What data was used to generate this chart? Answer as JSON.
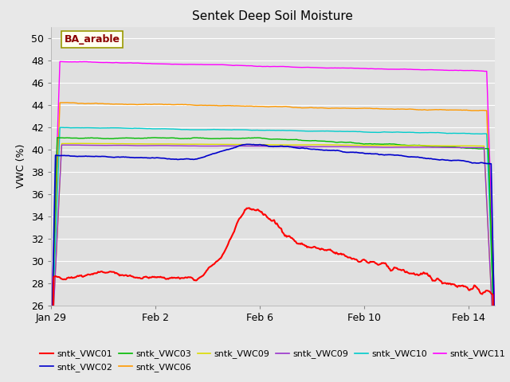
{
  "title": "Sentek Deep Soil Moisture",
  "ylabel": "VWC (%)",
  "fig_bg_color": "#e8e8e8",
  "plot_bg_color": "#e0e0e0",
  "ylim": [
    26,
    51
  ],
  "yticks": [
    26,
    28,
    30,
    32,
    34,
    36,
    38,
    40,
    42,
    44,
    46,
    48,
    50
  ],
  "xtick_labels": [
    "Jan 29",
    "Feb 2",
    "Feb 6",
    "Feb 10",
    "Feb 14"
  ],
  "xtick_days": [
    0,
    4,
    8,
    12,
    16
  ],
  "total_days": 17,
  "annotation": "BA_arable",
  "annotation_color": "#8b0000",
  "annotation_bg": "#fffff0",
  "annotation_edge": "#999900",
  "colors": {
    "vwc01": "#ff0000",
    "vwc02": "#0000cc",
    "vwc03": "#00bb00",
    "vwc06": "#ff9900",
    "vwc09y": "#dddd00",
    "vwc09p": "#9933cc",
    "vwc10": "#00cccc",
    "vwc11": "#ff00ff"
  },
  "legend_order": [
    "sntk_VWC01",
    "sntk_VWC02",
    "sntk_VWC03",
    "sntk_VWC06",
    "sntk_VWC09",
    "sntk_VWC09",
    "sntk_VWC10",
    "sntk_VWC11"
  ],
  "legend_colors": [
    "#ff0000",
    "#0000cc",
    "#00bb00",
    "#ff9900",
    "#dddd00",
    "#9933cc",
    "#00cccc",
    "#ff00ff"
  ]
}
